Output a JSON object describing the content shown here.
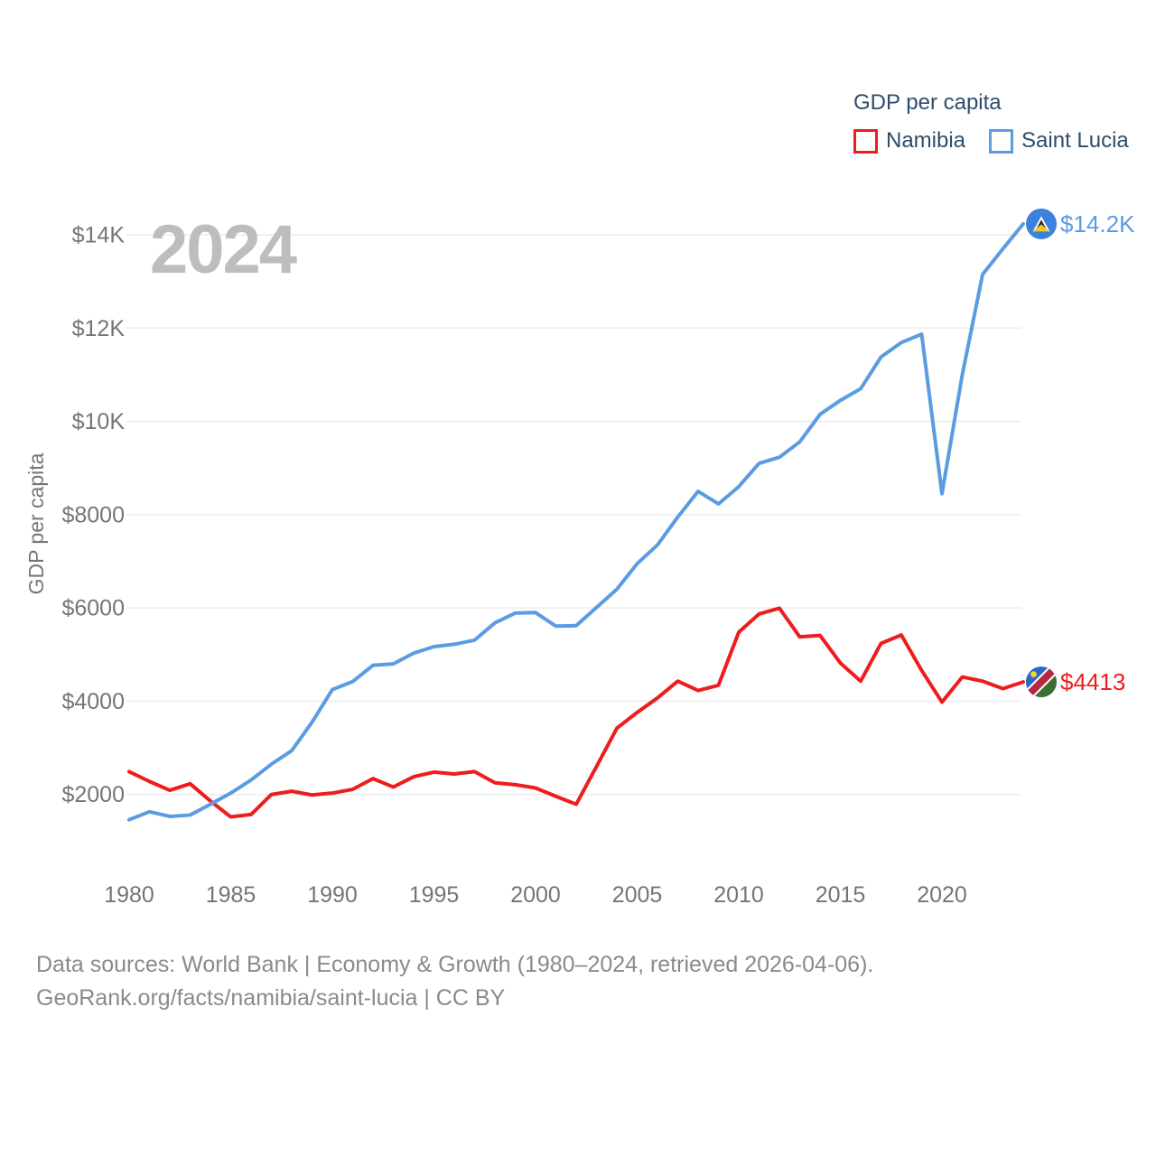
{
  "watermark": "2024",
  "legend": {
    "title": "GDP per capita",
    "items": [
      {
        "label": "Namibia",
        "color": "#ee1d1d"
      },
      {
        "label": "Saint Lucia",
        "color": "#5b9ce1"
      }
    ]
  },
  "y_axis": {
    "title": "GDP per capita",
    "ticks": [
      {
        "value": 2000,
        "label": "$2000"
      },
      {
        "value": 4000,
        "label": "$4000"
      },
      {
        "value": 6000,
        "label": "$6000"
      },
      {
        "value": 8000,
        "label": "$8000"
      },
      {
        "value": 10000,
        "label": "$10K"
      },
      {
        "value": 12000,
        "label": "$12K"
      },
      {
        "value": 14000,
        "label": "$14K"
      }
    ]
  },
  "x_axis": {
    "ticks": [
      1980,
      1985,
      1990,
      1995,
      2000,
      2005,
      2010,
      2015,
      2020
    ]
  },
  "footer": {
    "line1": "Data sources: World Bank | Economy & Growth (1980–2024, retrieved 2026-04-06).",
    "line2": "GeoRank.org/facts/namibia/saint-lucia | CC BY"
  },
  "chart_data": {
    "type": "line",
    "title": "GDP per capita",
    "xlabel": "",
    "ylabel": "GDP per capita",
    "xlim": [
      1980,
      2024
    ],
    "ylim": [
      0,
      14800
    ],
    "grid": true,
    "legend_position": "top-right",
    "x": [
      1980,
      1981,
      1982,
      1983,
      1984,
      1985,
      1986,
      1987,
      1988,
      1989,
      1990,
      1991,
      1992,
      1993,
      1994,
      1995,
      1996,
      1997,
      1998,
      1999,
      2000,
      2001,
      2002,
      2003,
      2004,
      2005,
      2006,
      2007,
      2008,
      2009,
      2010,
      2011,
      2012,
      2013,
      2014,
      2015,
      2016,
      2017,
      2018,
      2019,
      2020,
      2021,
      2022,
      2023,
      2024
    ],
    "series": [
      {
        "name": "Namibia",
        "color": "#ee1d1d",
        "flag_icon": "namibia-flag",
        "end_label": "$4413",
        "end_value": 4413,
        "values": [
          2490,
          2280,
          2090,
          2230,
          1860,
          1520,
          1570,
          2000,
          2070,
          1990,
          2030,
          2110,
          2340,
          2160,
          2380,
          2480,
          2440,
          2490,
          2250,
          2210,
          2140,
          1960,
          1790,
          2600,
          3420,
          3760,
          4070,
          4430,
          4230,
          4340,
          5480,
          5870,
          5995,
          5380,
          5410,
          4820,
          4430,
          5240,
          5420,
          4660,
          3980,
          4520,
          4430,
          4270,
          4413
        ]
      },
      {
        "name": "Saint Lucia",
        "color": "#5b9ce1",
        "flag_icon": "saint-lucia-flag",
        "end_label": "$14.2K",
        "end_value": 14235,
        "values": [
          1460,
          1630,
          1530,
          1560,
          1790,
          2030,
          2310,
          2650,
          2940,
          3550,
          4250,
          4420,
          4770,
          4800,
          5030,
          5170,
          5220,
          5310,
          5680,
          5890,
          5900,
          5610,
          5620,
          6010,
          6400,
          6950,
          7350,
          7950,
          8500,
          8230,
          8600,
          9100,
          9230,
          9560,
          10150,
          10450,
          10700,
          11380,
          11690,
          11870,
          8450,
          11000,
          13150,
          13700,
          14235
        ]
      }
    ]
  }
}
